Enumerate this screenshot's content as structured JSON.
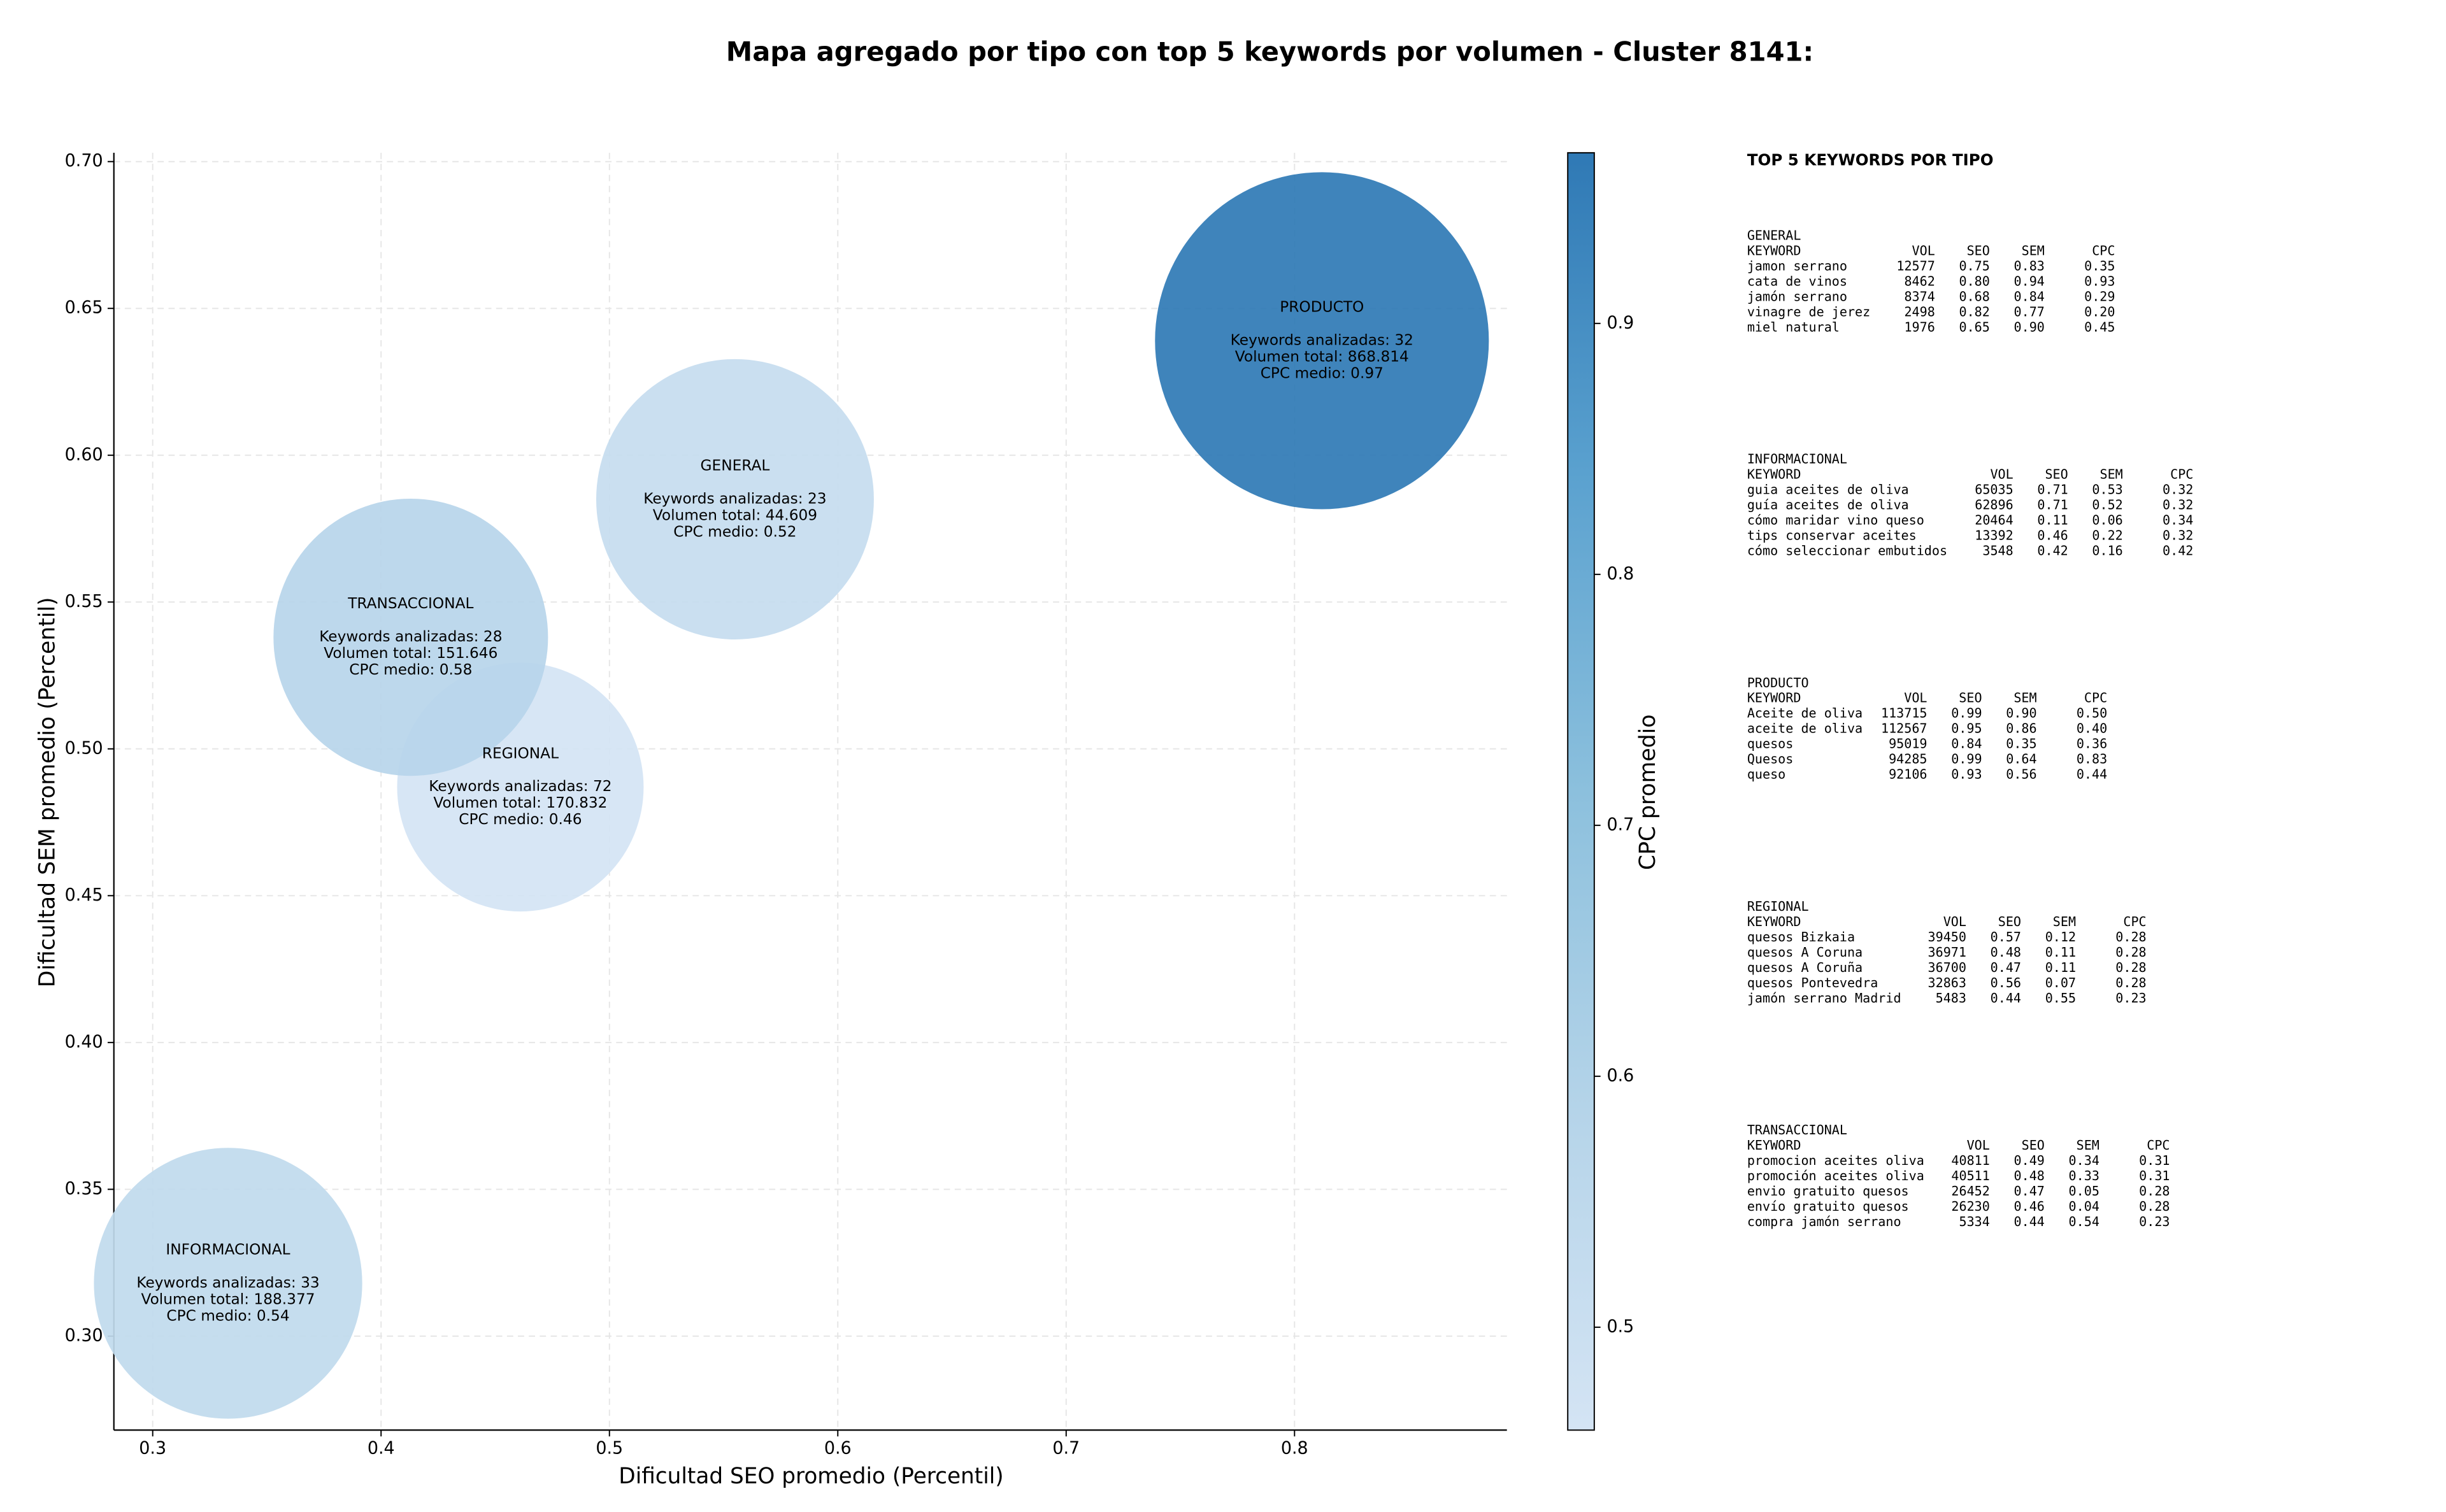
{
  "chart_data": {
    "type": "bubble",
    "title": "Mapa agregado por tipo con top 5 keywords por volumen - Cluster 8141:",
    "xlabel": "Dificultad SEO promedio (Percentil)",
    "ylabel": "Dificultad SEM promedio (Percentil)",
    "categories": [
      "GENERAL",
      "INFORMACIONAL",
      "PRODUCTO",
      "REGIONAL",
      "TRANSACCIONAL"
    ],
    "x": [
      0.555,
      0.333,
      0.812,
      0.461,
      0.413
    ],
    "y": [
      0.585,
      0.318,
      0.639,
      0.487,
      0.538
    ],
    "sizes": [
      7921,
      7396,
      11449,
      6241,
      7744
    ],
    "keywords": [
      23,
      33,
      32,
      72,
      28
    ],
    "keywords_labels": [
      "Keywords analizadas: 23",
      "Keywords analizadas: 33",
      "Keywords analizadas: 32",
      "Keywords analizadas: 72",
      "Keywords analizadas: 28"
    ],
    "volume": [
      44609,
      188377,
      868814,
      170832,
      151646
    ],
    "volume_labels": [
      "Volumen total: 44.609",
      "Volumen total: 188.377",
      "Volumen total: 868.814",
      "Volumen total: 170.832",
      "Volumen total: 151.646"
    ],
    "cpc": [
      0.52,
      0.54,
      0.97,
      0.46,
      0.58
    ],
    "cpc_labels": [
      "CPC medio: 0.52",
      "CPC medio: 0.54",
      "CPC medio: 0.97",
      "CPC medio: 0.46",
      "CPC medio: 0.58"
    ],
    "xlim": [
      0.283,
      0.893
    ],
    "ylim": [
      0.268,
      0.703
    ],
    "xticks": [
      0.3,
      0.4,
      0.5,
      0.6,
      0.7,
      0.8
    ],
    "yticks": [
      {
        "value": 0.3,
        "label": "0.30"
      },
      0.35,
      {
        "value": 0.4,
        "label": "0.40"
      },
      0.45,
      {
        "value": 0.5,
        "label": "0.50"
      },
      0.55,
      {
        "value": 0.6,
        "label": "0.60"
      },
      0.65,
      {
        "value": 0.7,
        "label": "0.70"
      }
    ],
    "grid": true,
    "colorbar": {
      "label": "CPC promedio",
      "clim": [
        0.459,
        0.968
      ],
      "ticks": [
        0.5,
        0.6,
        0.7,
        0.8,
        0.9
      ],
      "colormap": [
        "#d4e4f4",
        "#b5d4e9",
        "#8cc0dd",
        "#5aa1cf",
        "#2f79b5"
      ]
    }
  },
  "keyword_panel": {
    "title": "TOP 5 KEYWORDS POR TIPO",
    "columns": [
      "KEYWORD",
      "VOL",
      "SEO",
      "SEM",
      "CPC"
    ],
    "groups": [
      {
        "name": "GENERAL",
        "rows": [
          [
            "jamon serrano",
            "12577",
            "0.75",
            "0.83",
            "0.35"
          ],
          [
            "cata de vinos",
            "8462",
            "0.80",
            "0.94",
            "0.93"
          ],
          [
            "jamón serrano",
            "8374",
            "0.68",
            "0.84",
            "0.29"
          ],
          [
            "vinagre de jerez",
            "2498",
            "0.82",
            "0.77",
            "0.20"
          ],
          [
            "miel natural",
            "1976",
            "0.65",
            "0.90",
            "0.45"
          ]
        ]
      },
      {
        "name": "INFORMACIONAL",
        "rows": [
          [
            "guia aceites de oliva",
            "65035",
            "0.71",
            "0.53",
            "0.32"
          ],
          [
            "guía aceites de oliva",
            "62896",
            "0.71",
            "0.52",
            "0.32"
          ],
          [
            "cómo maridar vino queso",
            "20464",
            "0.11",
            "0.06",
            "0.34"
          ],
          [
            "tips conservar aceites",
            "13392",
            "0.46",
            "0.22",
            "0.32"
          ],
          [
            "cómo seleccionar embutidos",
            "3548",
            "0.42",
            "0.16",
            "0.42"
          ]
        ]
      },
      {
        "name": "PRODUCTO",
        "rows": [
          [
            "Aceite de oliva",
            "113715",
            "0.99",
            "0.90",
            "0.50"
          ],
          [
            "aceite de oliva",
            "112567",
            "0.95",
            "0.86",
            "0.40"
          ],
          [
            "quesos",
            "95019",
            "0.84",
            "0.35",
            "0.36"
          ],
          [
            "Quesos",
            "94285",
            "0.99",
            "0.64",
            "0.83"
          ],
          [
            "queso",
            "92106",
            "0.93",
            "0.56",
            "0.44"
          ]
        ]
      },
      {
        "name": "REGIONAL",
        "rows": [
          [
            "quesos Bizkaia",
            "39450",
            "0.57",
            "0.12",
            "0.28"
          ],
          [
            "quesos A Coruna",
            "36971",
            "0.48",
            "0.11",
            "0.28"
          ],
          [
            "quesos A Coruña",
            "36700",
            "0.47",
            "0.11",
            "0.28"
          ],
          [
            "quesos Pontevedra",
            "32863",
            "0.56",
            "0.07",
            "0.28"
          ],
          [
            "jamón serrano Madrid",
            "5483",
            "0.44",
            "0.55",
            "0.23"
          ]
        ]
      },
      {
        "name": "TRANSACCIONAL",
        "rows": [
          [
            "promocion aceites oliva",
            "40811",
            "0.49",
            "0.34",
            "0.31"
          ],
          [
            "promoción aceites oliva",
            "40511",
            "0.48",
            "0.33",
            "0.31"
          ],
          [
            "envio gratuito quesos",
            "26452",
            "0.47",
            "0.05",
            "0.28"
          ],
          [
            "envío gratuito quesos",
            "26230",
            "0.46",
            "0.04",
            "0.28"
          ],
          [
            "compra jamón serrano",
            "5334",
            "0.44",
            "0.54",
            "0.23"
          ]
        ]
      }
    ]
  }
}
